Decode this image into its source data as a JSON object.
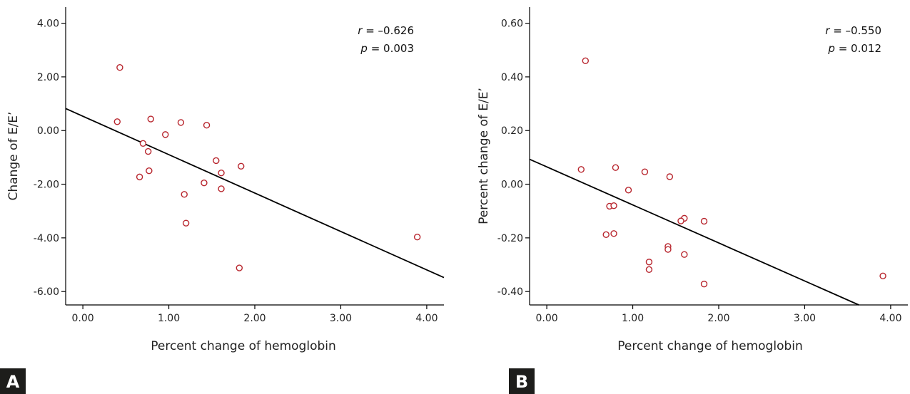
{
  "chart_data": [
    {
      "panel": "A",
      "type": "scatter",
      "xlabel": "Percent change of hemoglobin",
      "ylabel": "Change of E/E’",
      "xlim": [
        -0.2,
        4.2
      ],
      "ylim": [
        -6.5,
        4.6
      ],
      "xticks": [
        "0.00",
        "1.00",
        "2.00",
        "3.00",
        "4.00"
      ],
      "yticks": [
        "4.00",
        "2.00",
        "0.00",
        "-2.00",
        "-4.00",
        "-6.00"
      ],
      "r_label": "r",
      "r_value": "= –0.626",
      "p_label": "p",
      "p_value": "= 0.003",
      "points": [
        {
          "x": 0.43,
          "y": 2.35
        },
        {
          "x": 0.4,
          "y": 0.33
        },
        {
          "x": 0.7,
          "y": -0.48
        },
        {
          "x": 0.79,
          "y": 0.43
        },
        {
          "x": 0.76,
          "y": -0.78
        },
        {
          "x": 0.96,
          "y": -0.15
        },
        {
          "x": 1.14,
          "y": 0.3
        },
        {
          "x": 1.44,
          "y": 0.2
        },
        {
          "x": 0.66,
          "y": -1.73
        },
        {
          "x": 0.77,
          "y": -1.5
        },
        {
          "x": 1.18,
          "y": -2.38
        },
        {
          "x": 1.41,
          "y": -1.95
        },
        {
          "x": 1.55,
          "y": -1.12
        },
        {
          "x": 1.61,
          "y": -1.58
        },
        {
          "x": 1.61,
          "y": -2.17
        },
        {
          "x": 1.84,
          "y": -1.33
        },
        {
          "x": 1.2,
          "y": -3.45
        },
        {
          "x": 1.82,
          "y": -5.12
        },
        {
          "x": 3.89,
          "y": -3.97
        }
      ],
      "fit_line": [
        {
          "x": -0.2,
          "y": 0.82
        },
        {
          "x": 4.2,
          "y": -5.48
        }
      ]
    },
    {
      "panel": "B",
      "type": "scatter",
      "xlabel": "Percent change of hemoglobin",
      "ylabel": "Percent change of E/E’",
      "xlim": [
        -0.2,
        4.2
      ],
      "ylim": [
        -0.45,
        0.66
      ],
      "xticks": [
        "0.00",
        "1.00",
        "2.00",
        "3.00",
        "4.00"
      ],
      "yticks": [
        "0.60",
        "0.40",
        "0.20",
        "0.00",
        "-0.20",
        "-0.40"
      ],
      "r_label": "r",
      "r_value": "= –0.550",
      "p_label": "p",
      "p_value": "= 0.012",
      "points": [
        {
          "x": 0.45,
          "y": 0.46
        },
        {
          "x": 0.4,
          "y": 0.055
        },
        {
          "x": 0.8,
          "y": 0.062
        },
        {
          "x": 1.14,
          "y": 0.046
        },
        {
          "x": 1.43,
          "y": 0.028
        },
        {
          "x": 0.95,
          "y": -0.022
        },
        {
          "x": 0.73,
          "y": -0.082
        },
        {
          "x": 0.78,
          "y": -0.08
        },
        {
          "x": 1.6,
          "y": -0.127
        },
        {
          "x": 1.56,
          "y": -0.137
        },
        {
          "x": 1.83,
          "y": -0.138
        },
        {
          "x": 0.69,
          "y": -0.188
        },
        {
          "x": 0.78,
          "y": -0.184
        },
        {
          "x": 1.41,
          "y": -0.232
        },
        {
          "x": 1.41,
          "y": -0.243
        },
        {
          "x": 1.6,
          "y": -0.262
        },
        {
          "x": 1.19,
          "y": -0.29
        },
        {
          "x": 1.19,
          "y": -0.318
        },
        {
          "x": 1.83,
          "y": -0.372
        },
        {
          "x": 3.91,
          "y": -0.342
        }
      ],
      "fit_line": [
        {
          "x": -0.2,
          "y": 0.093
        },
        {
          "x": 3.63,
          "y": -0.45
        }
      ]
    }
  ],
  "colors": {
    "marker": "#b8262e",
    "line": "#000000",
    "axis": "#000000",
    "badge": "#1d1d1b"
  }
}
